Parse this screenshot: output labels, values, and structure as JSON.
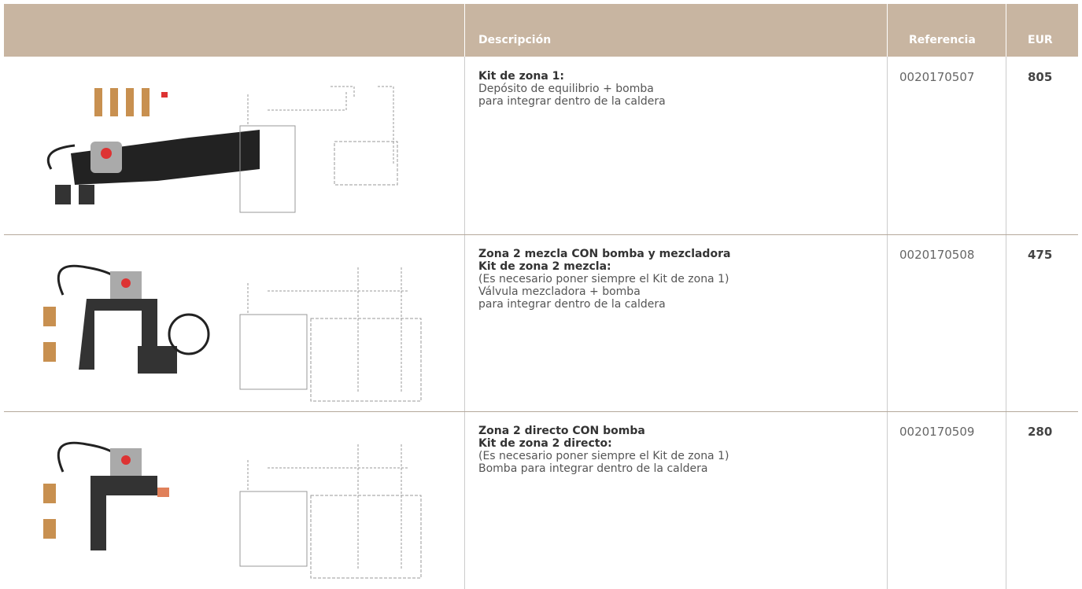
{
  "header": {
    "columns": [
      "Descripción",
      "Referencia",
      "EUR"
    ]
  },
  "rows": [
    {
      "bold_lines": [
        "Kit de zona 1:"
      ],
      "lines": [
        "Depósito de equilibrio + bomba",
        "para integrar dentro de la caldera"
      ],
      "reference": "0020170507",
      "price": 805
    },
    {
      "bold_lines": [
        "Zona 2 mezcla CON bomba y mezcladora",
        "Kit de zona 2 mezcla:"
      ],
      "lines": [
        "(Es necesario poner siempre el Kit de zona 1)",
        "Válvula mezcladora + bomba",
        "para integrar dentro de la caldera"
      ],
      "reference": "0020170508",
      "price": 475
    },
    {
      "bold_lines": [
        "Zona 2 directo CON bomba",
        "Kit de zona 2 directo:"
      ],
      "lines": [
        "(Es necesario poner siempre el Kit de zona 1)",
        "Bomba para integrar dentro de la caldera"
      ],
      "reference": "0020170509",
      "price": 280
    }
  ]
}
